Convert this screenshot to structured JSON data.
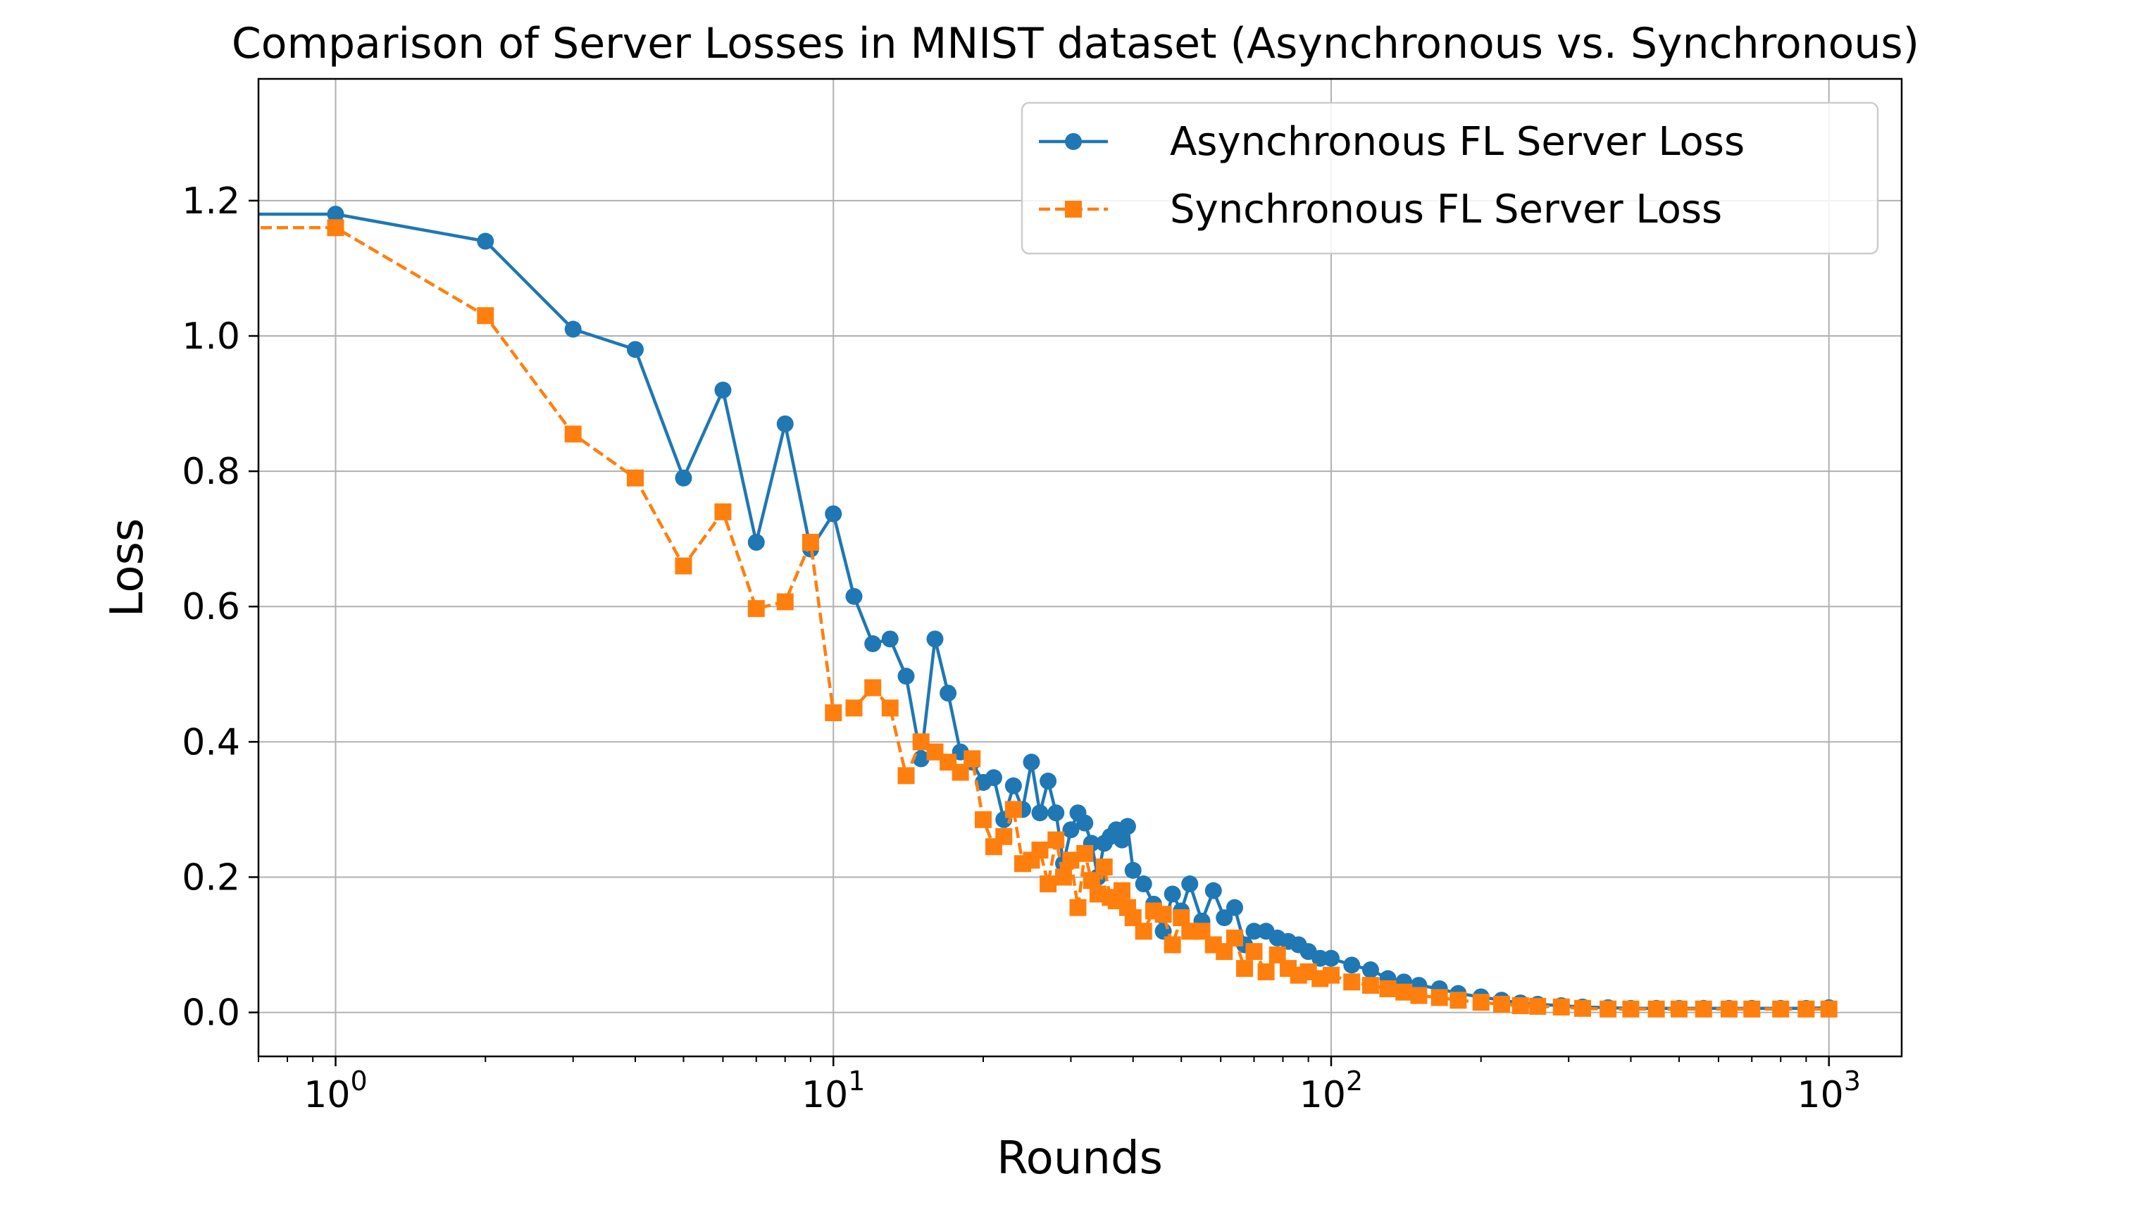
{
  "chart_data": {
    "type": "line",
    "title": "Comparison of Server Losses in MNIST dataset (Asynchronous vs. Synchronous)",
    "xlabel": "Rounds",
    "ylabel": "Loss",
    "xscale": "log",
    "xlim": [
      0.7,
      1400
    ],
    "ylim": [
      -0.065,
      1.38
    ],
    "x_ticks": [
      {
        "value": 1,
        "base": "10",
        "exp": "0"
      },
      {
        "value": 10,
        "base": "10",
        "exp": "1"
      },
      {
        "value": 100,
        "base": "10",
        "exp": "2"
      },
      {
        "value": 1000,
        "base": "10",
        "exp": "3"
      }
    ],
    "y_ticks": [
      {
        "value": 0.0,
        "label": "0.0"
      },
      {
        "value": 0.2,
        "label": "0.2"
      },
      {
        "value": 0.4,
        "label": "0.4"
      },
      {
        "value": 0.6,
        "label": "0.6"
      },
      {
        "value": 0.8,
        "label": "0.8"
      },
      {
        "value": 1.0,
        "label": "1.0"
      },
      {
        "value": 1.2,
        "label": "1.2"
      }
    ],
    "grid": true,
    "legend_position": "top-right",
    "series": [
      {
        "name": "Asynchronous FL Server Loss",
        "color": "#1f77b4",
        "marker": "circle",
        "linestyle": "solid",
        "x": [
          0,
          1,
          2,
          3,
          4,
          5,
          6,
          7,
          8,
          9,
          10,
          11,
          12,
          13,
          14,
          15,
          16,
          17,
          18,
          19,
          20,
          21,
          22,
          23,
          24,
          25,
          26,
          27,
          28,
          29,
          30,
          31,
          32,
          33,
          34,
          35,
          36,
          37,
          38,
          39,
          40,
          42,
          44,
          46,
          48,
          50,
          52,
          55,
          58,
          61,
          64,
          67,
          70,
          74,
          78,
          82,
          86,
          90,
          95,
          100,
          110,
          120,
          130,
          140,
          150,
          165,
          180,
          200,
          220,
          240,
          260,
          290,
          320,
          360,
          400,
          450,
          500,
          560,
          630,
          700,
          800,
          900,
          1000
        ],
        "y": [
          1.18,
          1.18,
          1.14,
          1.01,
          0.98,
          0.79,
          0.92,
          0.695,
          0.87,
          0.685,
          0.737,
          0.615,
          0.545,
          0.552,
          0.497,
          0.375,
          0.552,
          0.472,
          0.385,
          0.37,
          0.34,
          0.347,
          0.285,
          0.335,
          0.3,
          0.37,
          0.295,
          0.342,
          0.295,
          0.22,
          0.27,
          0.295,
          0.28,
          0.25,
          0.2,
          0.25,
          0.26,
          0.27,
          0.255,
          0.275,
          0.21,
          0.19,
          0.16,
          0.12,
          0.175,
          0.15,
          0.19,
          0.135,
          0.18,
          0.14,
          0.155,
          0.1,
          0.12,
          0.12,
          0.11,
          0.105,
          0.1,
          0.09,
          0.08,
          0.08,
          0.07,
          0.063,
          0.05,
          0.045,
          0.04,
          0.035,
          0.028,
          0.023,
          0.018,
          0.014,
          0.012,
          0.01,
          0.008,
          0.007,
          0.006,
          0.006,
          0.006,
          0.006,
          0.006,
          0.006,
          0.006,
          0.006,
          0.007
        ]
      },
      {
        "name": "Synchronous FL Server Loss",
        "color": "#ff7f0e",
        "marker": "square",
        "linestyle": "dashed",
        "x": [
          0,
          1,
          2,
          3,
          4,
          5,
          6,
          7,
          8,
          9,
          10,
          11,
          12,
          13,
          14,
          15,
          16,
          17,
          18,
          19,
          20,
          21,
          22,
          23,
          24,
          25,
          26,
          27,
          28,
          29,
          30,
          31,
          32,
          33,
          34,
          35,
          36,
          37,
          38,
          39,
          40,
          42,
          44,
          46,
          48,
          50,
          52,
          55,
          58,
          61,
          64,
          67,
          70,
          74,
          78,
          82,
          86,
          90,
          95,
          100,
          110,
          120,
          130,
          140,
          150,
          165,
          180,
          200,
          220,
          240,
          260,
          290,
          320,
          360,
          400,
          450,
          500,
          560,
          630,
          700,
          800,
          900,
          1000
        ],
        "y": [
          1.16,
          1.16,
          1.03,
          0.855,
          0.79,
          0.66,
          0.74,
          0.597,
          0.607,
          0.695,
          0.443,
          0.45,
          0.48,
          0.45,
          0.35,
          0.4,
          0.385,
          0.37,
          0.355,
          0.375,
          0.285,
          0.245,
          0.26,
          0.3,
          0.22,
          0.225,
          0.24,
          0.19,
          0.255,
          0.2,
          0.225,
          0.155,
          0.235,
          0.195,
          0.175,
          0.215,
          0.17,
          0.165,
          0.18,
          0.155,
          0.14,
          0.12,
          0.15,
          0.145,
          0.1,
          0.14,
          0.12,
          0.12,
          0.1,
          0.09,
          0.11,
          0.065,
          0.09,
          0.06,
          0.085,
          0.065,
          0.055,
          0.06,
          0.05,
          0.055,
          0.045,
          0.04,
          0.035,
          0.03,
          0.025,
          0.022,
          0.018,
          0.015,
          0.012,
          0.01,
          0.009,
          0.008,
          0.006,
          0.005,
          0.005,
          0.005,
          0.005,
          0.005,
          0.005,
          0.005,
          0.005,
          0.005,
          0.005
        ]
      }
    ]
  }
}
